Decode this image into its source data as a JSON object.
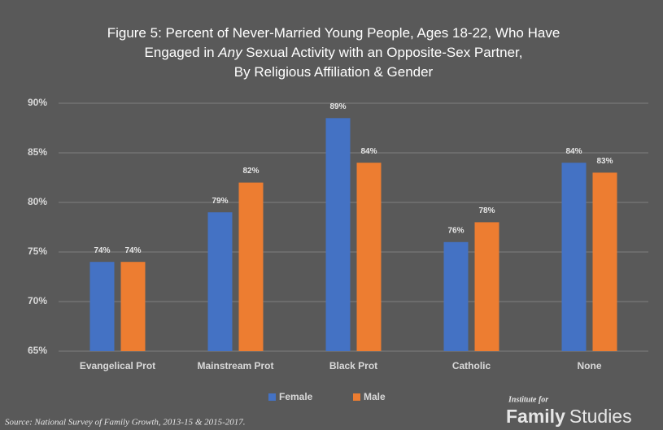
{
  "chart_data": {
    "type": "bar",
    "title_lines": [
      [
        "Figure 5: Percent of Never-Married Young People, Ages 18-22, Who Have"
      ],
      [
        "Engaged in ",
        "Any",
        " Sexual Activity with an Opposite-Sex Partner,"
      ],
      [
        "By Religious Affiliation & Gender"
      ]
    ],
    "categories": [
      "Evangelical Prot",
      "Mainstream Prot",
      "Black Prot",
      "Catholic",
      "None"
    ],
    "series": [
      {
        "name": "Female",
        "color": "#4472c4",
        "values": [
          74,
          79,
          88.5,
          76,
          84
        ],
        "value_labels": [
          "74%",
          "79%",
          "89%",
          "76%",
          "84%"
        ]
      },
      {
        "name": "Male",
        "color": "#ed7d31",
        "values": [
          74,
          82,
          84,
          78,
          83
        ],
        "value_labels": [
          "74%",
          "82%",
          "84%",
          "78%",
          "83%"
        ]
      }
    ],
    "ylim": [
      65,
      90
    ],
    "yticks": [
      {
        "value": 65,
        "label": "65%"
      },
      {
        "value": 70,
        "label": "70%"
      },
      {
        "value": 75,
        "label": "75%"
      },
      {
        "value": 80,
        "label": "80%"
      },
      {
        "value": 85,
        "label": "85%"
      },
      {
        "value": 90,
        "label": "90%"
      }
    ],
    "grid": true,
    "legend": "bottom",
    "source": "Source: National Survey of Family Growth, 2013-15 & 2015-2017.",
    "logo": {
      "top": "Institute for",
      "bold": "Family",
      "light": "Studies"
    }
  }
}
